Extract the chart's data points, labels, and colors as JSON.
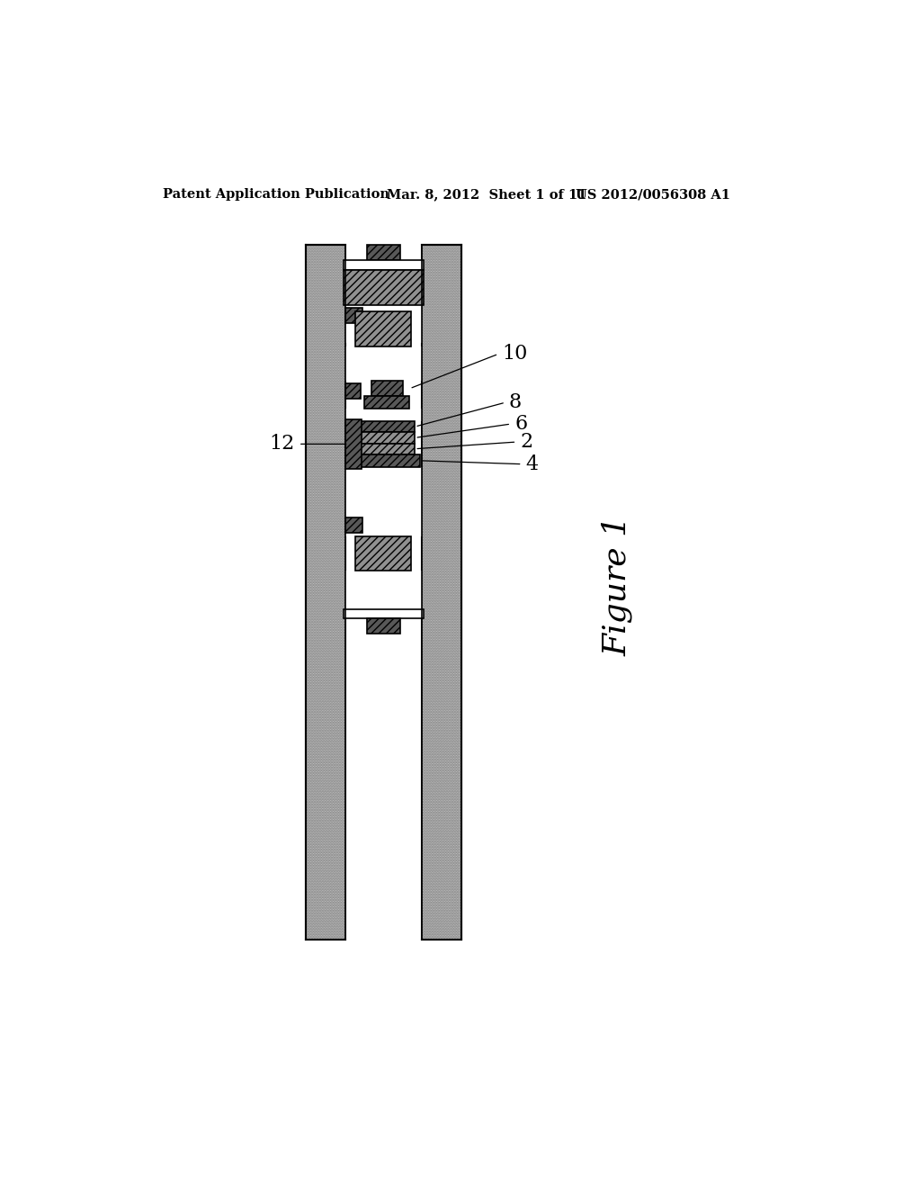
{
  "bg_color": "#ffffff",
  "header_left": "Patent Application Publication",
  "header_mid": "Mar. 8, 2012  Sheet 1 of 11",
  "header_right": "US 2012/0056308 A1",
  "figure_label": "Figure 1",
  "light_gray": "#c8c8c8",
  "medium_gray": "#909090",
  "dark_gray": "#585858",
  "outline_color": "#000000",
  "white": "#ffffff",
  "wall_stipple": "#b0b0b0"
}
